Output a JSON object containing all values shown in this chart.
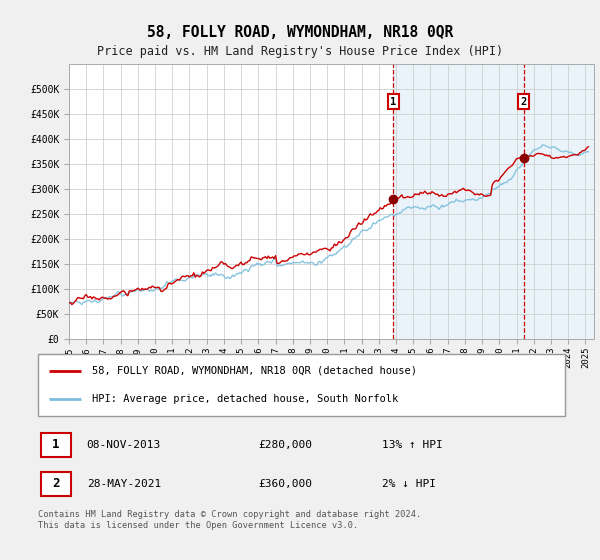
{
  "title": "58, FOLLY ROAD, WYMONDHAM, NR18 0QR",
  "subtitle": "Price paid vs. HM Land Registry's House Price Index (HPI)",
  "legend_line1": "58, FOLLY ROAD, WYMONDHAM, NR18 0QR (detached house)",
  "legend_line2": "HPI: Average price, detached house, South Norfolk",
  "annotation1_date": "08-NOV-2013",
  "annotation1_price": "£280,000",
  "annotation1_hpi": "13% ↑ HPI",
  "annotation1_year": 2013.85,
  "annotation2_date": "28-MAY-2021",
  "annotation2_price": "£360,000",
  "annotation2_hpi": "2% ↓ HPI",
  "annotation2_year": 2021.42,
  "hpi_color": "#7bbfdd",
  "price_color": "#cc0000",
  "dot_color": "#8b0000",
  "vline_color": "#cc0000",
  "shade_color": "#daeaf5",
  "bg_color": "#f0f0f0",
  "plot_bg": "#ffffff",
  "grid_color": "#c8c8c8",
  "ylim": [
    0,
    550000
  ],
  "yticks": [
    0,
    50000,
    100000,
    150000,
    200000,
    250000,
    300000,
    350000,
    400000,
    450000,
    500000
  ],
  "footer": "Contains HM Land Registry data © Crown copyright and database right 2024.\nThis data is licensed under the Open Government Licence v3.0."
}
